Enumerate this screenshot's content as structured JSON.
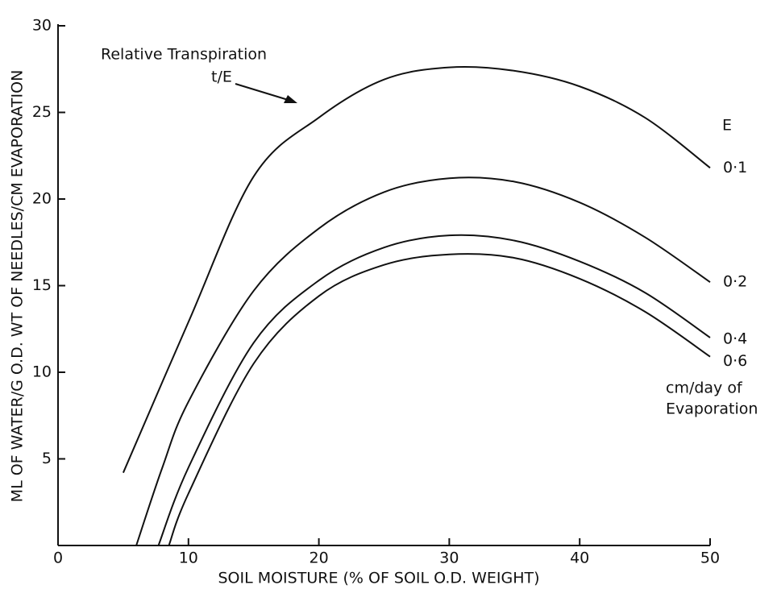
{
  "chart_data": {
    "type": "line",
    "y_label": "ML OF WATER/G O.D. WT OF NEEDLES/CM EVAPORATION",
    "x_label": "SOIL MOISTURE (% OF SOIL O.D. WEIGHT)",
    "annotations": [
      "Relative Transpiration",
      "t/E"
    ],
    "legend_title": "E",
    "legend_note": [
      "cm/day of",
      "Evaporation"
    ],
    "xlim": [
      0,
      50
    ],
    "xticks": [
      0,
      10,
      20,
      30,
      40,
      50
    ],
    "ylim": [
      0,
      30
    ],
    "yticks": [
      5,
      10,
      15,
      20,
      25,
      30
    ],
    "series": [
      {
        "name": "0·1",
        "color": "#111111",
        "x": [
          5,
          10,
          15,
          20,
          25,
          30,
          35,
          40,
          45,
          50
        ],
        "values": [
          4.2,
          12.9,
          21.3,
          24.7,
          26.9,
          27.6,
          27.4,
          26.5,
          24.7,
          21.8
        ]
      },
      {
        "name": "0·2",
        "color": "#111111",
        "x": [
          6,
          8,
          10,
          15,
          20,
          25,
          30,
          35,
          40,
          45,
          50
        ],
        "values": [
          0,
          4.5,
          8.3,
          14.7,
          18.3,
          20.4,
          21.2,
          21.0,
          19.8,
          17.8,
          15.2
        ]
      },
      {
        "name": "0·4",
        "color": "#111111",
        "x": [
          7.7,
          10,
          15,
          20,
          25,
          30,
          35,
          40,
          45,
          50
        ],
        "values": [
          0,
          4.5,
          11.7,
          15.3,
          17.2,
          17.9,
          17.6,
          16.4,
          14.6,
          12.0
        ]
      },
      {
        "name": "0·6",
        "color": "#111111",
        "x": [
          8.5,
          10,
          15,
          20,
          25,
          30,
          35,
          40,
          45,
          50
        ],
        "values": [
          0,
          3.0,
          10.5,
          14.4,
          16.2,
          16.8,
          16.6,
          15.4,
          13.5,
          10.9
        ]
      }
    ]
  }
}
